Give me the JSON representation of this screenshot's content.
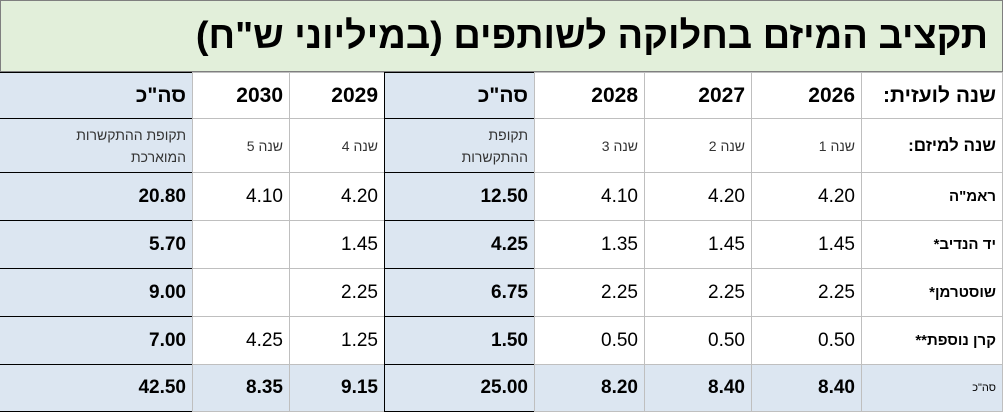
{
  "title": "תקציב המיזם בחלוקה לשותפים (במיליוני ש\"ח)",
  "table": {
    "header": [
      [
        "שנה לועזית:",
        "2026",
        "2027",
        "2028",
        "סה\"כ",
        "2029",
        "2030",
        "סה\"כ"
      ],
      [
        "שנה למיזם:",
        "שנה 1",
        "שנה 2",
        "שנה 3",
        "תקופת\nההתקשרות",
        "שנה 4",
        "שנה 5",
        "תקופת ההתקשרות\nהמוארכת"
      ]
    ],
    "rows": [
      [
        "ראמ\"ה",
        "4.20",
        "4.20",
        "4.10",
        "12.50",
        "4.20",
        "4.10",
        "20.80"
      ],
      [
        "יד הנדיב*",
        "1.45",
        "1.45",
        "1.35",
        "4.25",
        "1.45",
        null,
        "5.70"
      ],
      [
        "שוסטרמן*",
        "2.25",
        "2.25",
        "2.25",
        "6.75",
        "2.25",
        null,
        "9.00"
      ],
      [
        "קרן נוספת**",
        "0.50",
        "0.50",
        "0.50",
        "1.50",
        "1.25",
        "4.25",
        "7.00"
      ],
      [
        "סה\"כ",
        "8.40",
        "8.40",
        "8.20",
        "25.00",
        "9.15",
        "8.35",
        "42.50"
      ]
    ]
  }
}
